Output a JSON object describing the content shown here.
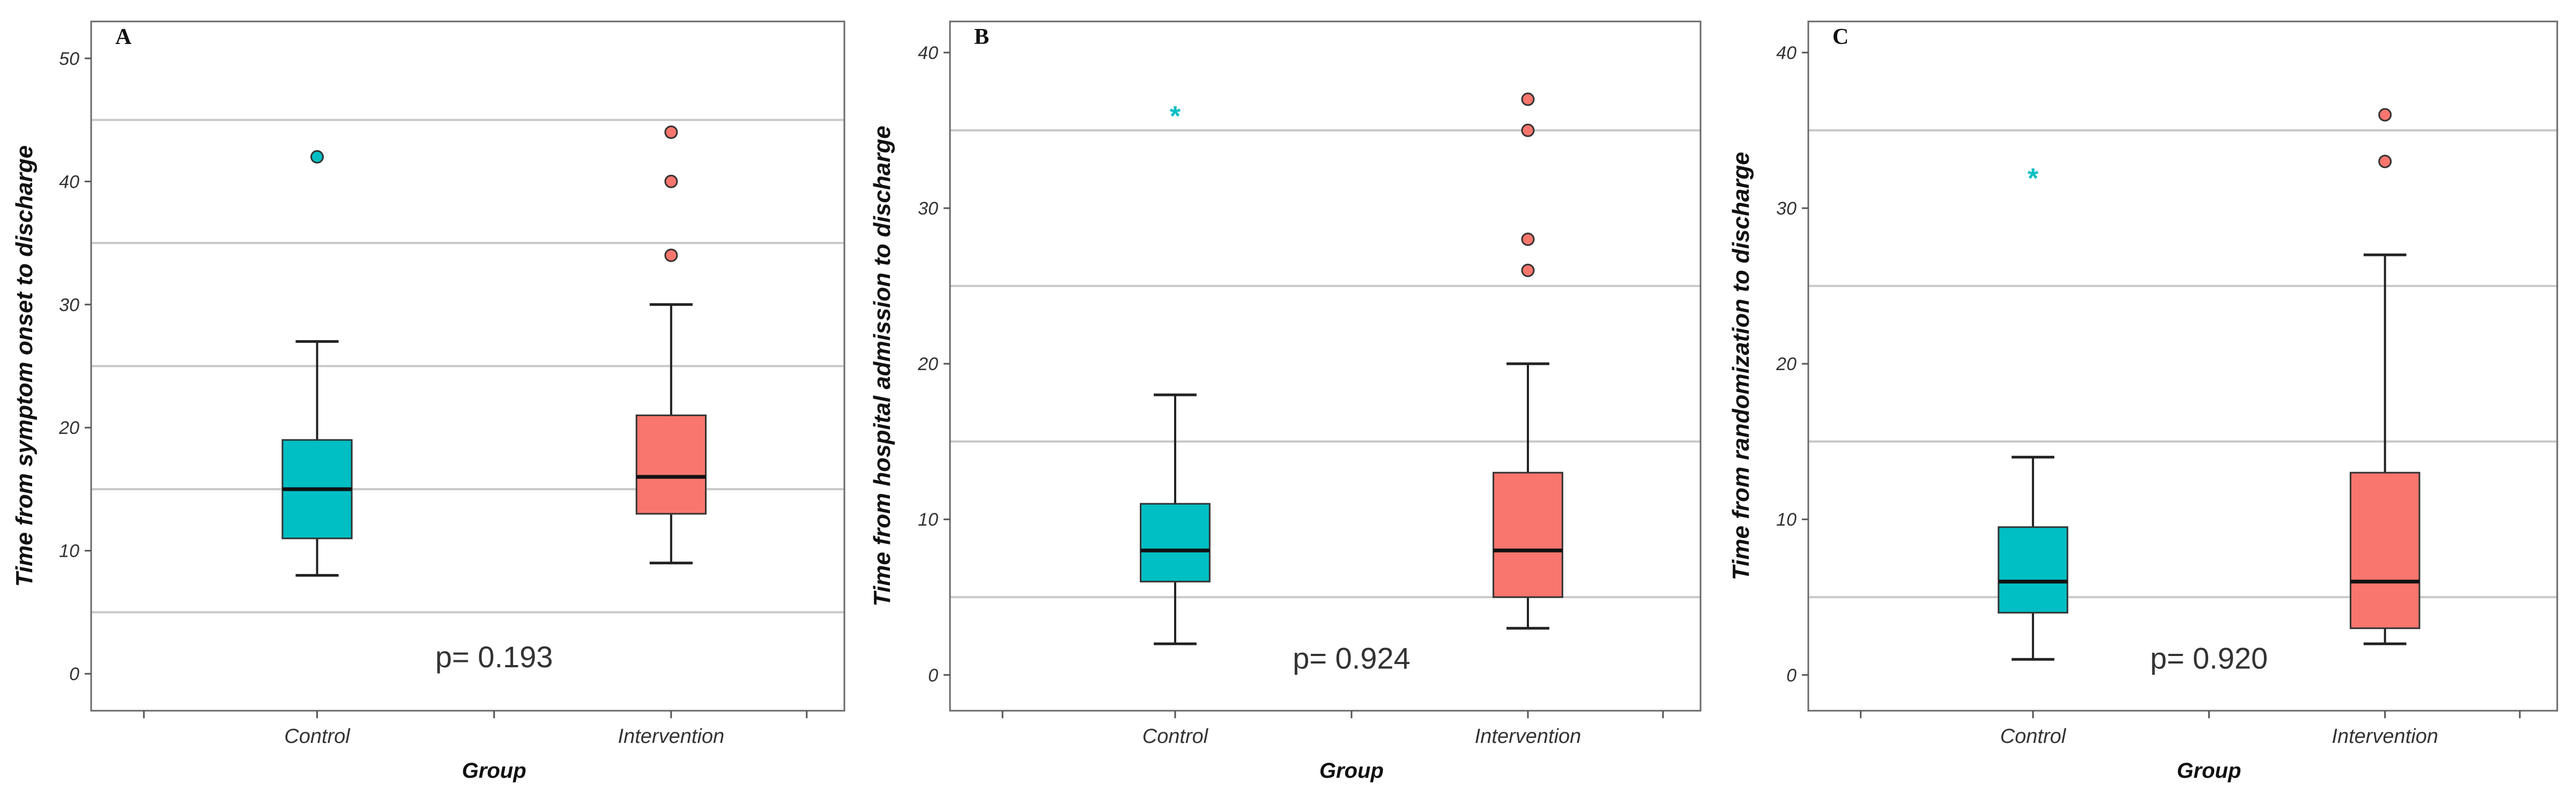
{
  "chart_data": [
    {
      "type": "boxplot",
      "panel_label": "A",
      "ylabel": "Time from symptom onset to discharge",
      "xlabel": "Group",
      "ylim": [
        -3,
        53
      ],
      "yticks": [
        0,
        10,
        20,
        30,
        40,
        50
      ],
      "gridlines": [
        5,
        15,
        25,
        35,
        45
      ],
      "categories": [
        "Control",
        "Intervention"
      ],
      "annotation": "p= 0.193",
      "boxes": [
        {
          "group": "Control",
          "color": "#00BFC4",
          "min": 8,
          "q1": 11,
          "median": 15,
          "q3": 19,
          "max": 27,
          "outliers": [
            42
          ],
          "outlier_marker": "circle"
        },
        {
          "group": "Intervention",
          "color": "#F8766D",
          "min": 9,
          "q1": 13,
          "median": 16,
          "q3": 21,
          "max": 30,
          "outliers": [
            34,
            40,
            44
          ],
          "outlier_marker": "circle"
        }
      ]
    },
    {
      "type": "boxplot",
      "panel_label": "B",
      "ylabel": "Time from hospital admission to discharge",
      "xlabel": "Group",
      "ylim": [
        -2.3,
        42
      ],
      "yticks": [
        0,
        10,
        20,
        30,
        40
      ],
      "gridlines": [
        5,
        15,
        25,
        35
      ],
      "categories": [
        "Control",
        "Intervention"
      ],
      "annotation": "p= 0.924",
      "boxes": [
        {
          "group": "Control",
          "color": "#00BFC4",
          "min": 2,
          "q1": 6,
          "median": 8,
          "q3": 11,
          "max": 18,
          "outliers": [
            36
          ],
          "outlier_marker": "star"
        },
        {
          "group": "Intervention",
          "color": "#F8766D",
          "min": 3,
          "q1": 5,
          "median": 8,
          "q3": 13,
          "max": 20,
          "outliers": [
            26,
            28,
            35,
            37
          ],
          "outlier_marker": "circle"
        }
      ]
    },
    {
      "type": "boxplot",
      "panel_label": "C",
      "ylabel": "Time from randomization to discharge",
      "xlabel": "Group",
      "ylim": [
        -2.3,
        42
      ],
      "yticks": [
        0,
        10,
        20,
        30,
        40
      ],
      "gridlines": [
        5,
        15,
        25,
        35
      ],
      "categories": [
        "Control",
        "Intervention"
      ],
      "annotation": "p= 0.920",
      "boxes": [
        {
          "group": "Control",
          "color": "#00BFC4",
          "min": 1,
          "q1": 4,
          "median": 6,
          "q3": 9.5,
          "max": 14,
          "outliers": [
            32
          ],
          "outlier_marker": "star"
        },
        {
          "group": "Intervention",
          "color": "#F8766D",
          "min": 2,
          "q1": 3,
          "median": 6,
          "q3": 13,
          "max": 27,
          "outliers": [
            33,
            36
          ],
          "outlier_marker": "circle"
        }
      ]
    }
  ]
}
